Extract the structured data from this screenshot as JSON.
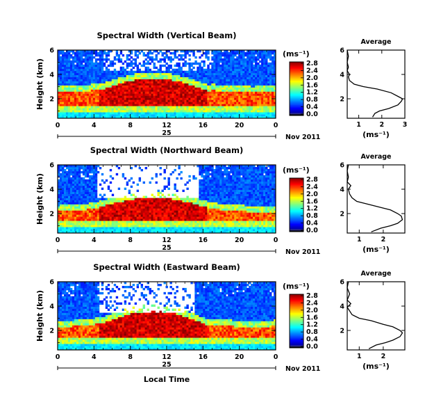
{
  "chart_data": [
    {
      "type": "heatmap",
      "title": "Spectral Width (Vertical Beam)",
      "ylabel": "Height (km)",
      "xlabel": "",
      "x_ticks": [
        "0",
        "4",
        "8",
        "12",
        "16",
        "20",
        "0"
      ],
      "y_ticks": [
        "2",
        "4",
        "6"
      ],
      "xlim": [
        0,
        24
      ],
      "ylim": [
        0.4,
        6
      ],
      "date_day": "25",
      "date_label": "Nov 2011",
      "colorbar": {
        "unit": "(ms⁻¹)",
        "ticks": [
          "0.0",
          "0.4",
          "0.8",
          "1.2",
          "1.6",
          "2.0",
          "2.4",
          "2.8"
        ],
        "range": [
          0,
          3.0
        ]
      },
      "average": {
        "title": "Average",
        "xlabel": "(ms⁻¹)",
        "x_ticks": [
          "1",
          "2",
          "3"
        ],
        "xlim": [
          0.5,
          3.0
        ],
        "y_ticks": [
          "2",
          "4",
          "6"
        ],
        "profile": [
          {
            "h": 0.5,
            "v": 1.6
          },
          {
            "h": 0.8,
            "v": 1.7
          },
          {
            "h": 1.0,
            "v": 1.9
          },
          {
            "h": 1.2,
            "v": 2.3
          },
          {
            "h": 1.5,
            "v": 2.7
          },
          {
            "h": 1.8,
            "v": 2.85
          },
          {
            "h": 2.0,
            "v": 2.9
          },
          {
            "h": 2.2,
            "v": 2.7
          },
          {
            "h": 2.5,
            "v": 2.4
          },
          {
            "h": 2.8,
            "v": 1.8
          },
          {
            "h": 3.0,
            "v": 1.2
          },
          {
            "h": 3.2,
            "v": 0.8
          },
          {
            "h": 3.5,
            "v": 0.6
          },
          {
            "h": 3.8,
            "v": 0.55
          },
          {
            "h": 4.0,
            "v": 0.6
          },
          {
            "h": 4.3,
            "v": 0.5
          },
          {
            "h": 4.6,
            "v": 0.55
          },
          {
            "h": 5.0,
            "v": 0.5
          },
          {
            "h": 5.5,
            "v": 0.55
          },
          {
            "h": 6.0,
            "v": 0.5
          }
        ]
      }
    },
    {
      "type": "heatmap",
      "title": "Spectral Width (Northward Beam)",
      "ylabel": "Height (km)",
      "xlabel": "",
      "x_ticks": [
        "0",
        "4",
        "8",
        "12",
        "16",
        "20",
        "0"
      ],
      "y_ticks": [
        "2",
        "4",
        "6"
      ],
      "xlim": [
        0,
        24
      ],
      "ylim": [
        0.4,
        6
      ],
      "date_day": "25",
      "date_label": "Nov 2011",
      "colorbar": {
        "unit": "(ms⁻¹)",
        "ticks": [
          "0.0",
          "0.4",
          "0.8",
          "1.2",
          "1.6",
          "2.0",
          "2.4",
          "2.8"
        ],
        "range": [
          0,
          3.0
        ]
      },
      "average": {
        "title": "Average",
        "xlabel": "(ms⁻¹)",
        "x_ticks": [
          "1",
          "2"
        ],
        "xlim": [
          0.5,
          2.9
        ],
        "y_ticks": [
          "2",
          "4",
          "6"
        ],
        "profile": [
          {
            "h": 0.5,
            "v": 1.5
          },
          {
            "h": 0.8,
            "v": 1.9
          },
          {
            "h": 1.0,
            "v": 2.3
          },
          {
            "h": 1.2,
            "v": 2.6
          },
          {
            "h": 1.5,
            "v": 2.8
          },
          {
            "h": 1.8,
            "v": 2.75
          },
          {
            "h": 2.0,
            "v": 2.6
          },
          {
            "h": 2.3,
            "v": 2.3
          },
          {
            "h": 2.5,
            "v": 1.9
          },
          {
            "h": 2.8,
            "v": 1.3
          },
          {
            "h": 3.0,
            "v": 0.9
          },
          {
            "h": 3.3,
            "v": 0.7
          },
          {
            "h": 3.6,
            "v": 0.6
          },
          {
            "h": 4.0,
            "v": 0.55
          },
          {
            "h": 4.3,
            "v": 0.65
          },
          {
            "h": 4.6,
            "v": 0.5
          },
          {
            "h": 5.0,
            "v": 0.55
          },
          {
            "h": 5.5,
            "v": 0.5
          },
          {
            "h": 6.0,
            "v": 0.55
          }
        ]
      }
    },
    {
      "type": "heatmap",
      "title": "Spectral Width (Eastward Beam)",
      "ylabel": "Height (km)",
      "xlabel": "Local Time",
      "x_ticks": [
        "0",
        "4",
        "8",
        "12",
        "16",
        "20",
        "0"
      ],
      "y_ticks": [
        "2",
        "4",
        "6"
      ],
      "xlim": [
        0,
        24
      ],
      "ylim": [
        0.4,
        6
      ],
      "date_day": "25",
      "date_label": "Nov 2011",
      "colorbar": {
        "unit": "(ms⁻¹)",
        "ticks": [
          "0.0",
          "0.4",
          "0.8",
          "1.2",
          "1.6",
          "2.0",
          "2.4",
          "2.8"
        ],
        "range": [
          0,
          3.0
        ]
      },
      "average": {
        "title": "Average",
        "xlabel": "(ms⁻¹)",
        "x_ticks": [
          "1",
          "2"
        ],
        "xlim": [
          0.5,
          2.9
        ],
        "y_ticks": [
          "2",
          "4",
          "6"
        ],
        "profile": [
          {
            "h": 0.5,
            "v": 1.4
          },
          {
            "h": 0.8,
            "v": 1.7
          },
          {
            "h": 1.0,
            "v": 2.1
          },
          {
            "h": 1.2,
            "v": 2.4
          },
          {
            "h": 1.5,
            "v": 2.7
          },
          {
            "h": 1.8,
            "v": 2.8
          },
          {
            "h": 2.0,
            "v": 2.7
          },
          {
            "h": 2.3,
            "v": 2.4
          },
          {
            "h": 2.5,
            "v": 2.0
          },
          {
            "h": 2.8,
            "v": 1.5
          },
          {
            "h": 3.0,
            "v": 1.0
          },
          {
            "h": 3.3,
            "v": 0.7
          },
          {
            "h": 3.6,
            "v": 0.6
          },
          {
            "h": 3.9,
            "v": 0.5
          },
          {
            "h": 4.2,
            "v": 0.65
          },
          {
            "h": 4.5,
            "v": 0.5
          },
          {
            "h": 5.0,
            "v": 0.6
          },
          {
            "h": 5.5,
            "v": 0.5
          },
          {
            "h": 6.0,
            "v": 0.55
          }
        ]
      }
    }
  ]
}
